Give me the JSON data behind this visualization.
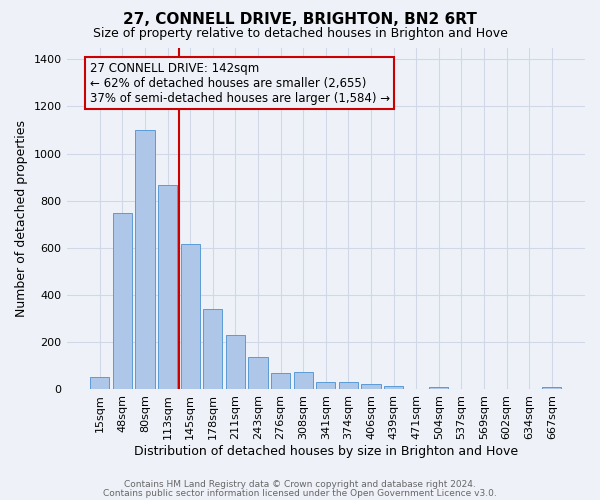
{
  "title": "27, CONNELL DRIVE, BRIGHTON, BN2 6RT",
  "subtitle": "Size of property relative to detached houses in Brighton and Hove",
  "xlabel": "Distribution of detached houses by size in Brighton and Hove",
  "ylabel": "Number of detached properties",
  "footer1": "Contains HM Land Registry data © Crown copyright and database right 2024.",
  "footer2": "Contains public sector information licensed under the Open Government Licence v3.0.",
  "categories": [
    "15sqm",
    "48sqm",
    "80sqm",
    "113sqm",
    "145sqm",
    "178sqm",
    "211sqm",
    "243sqm",
    "276sqm",
    "308sqm",
    "341sqm",
    "374sqm",
    "406sqm",
    "439sqm",
    "471sqm",
    "504sqm",
    "537sqm",
    "569sqm",
    "602sqm",
    "634sqm",
    "667sqm"
  ],
  "values": [
    52,
    748,
    1100,
    866,
    614,
    342,
    228,
    136,
    68,
    74,
    30,
    32,
    20,
    14,
    0,
    10,
    0,
    0,
    0,
    0,
    10
  ],
  "bar_color": "#aec6e8",
  "bar_edge_color": "#5b9bd5",
  "grid_color": "#d0d8e8",
  "background_color": "#eef2f8",
  "annotation_line1": "27 CONNELL DRIVE: 142sqm",
  "annotation_line2": "← 62% of detached houses are smaller (2,655)",
  "annotation_line3": "37% of semi-detached houses are larger (1,584) →",
  "vline_color": "#cc0000",
  "box_edge_color": "#cc0000",
  "ylim": [
    0,
    1450
  ],
  "yticks": [
    0,
    200,
    400,
    600,
    800,
    1000,
    1200,
    1400
  ],
  "title_fontsize": 11,
  "subtitle_fontsize": 9,
  "ylabel_fontsize": 9,
  "xlabel_fontsize": 9,
  "tick_fontsize": 8,
  "ann_fontsize": 8.5,
  "footer_fontsize": 6.5
}
